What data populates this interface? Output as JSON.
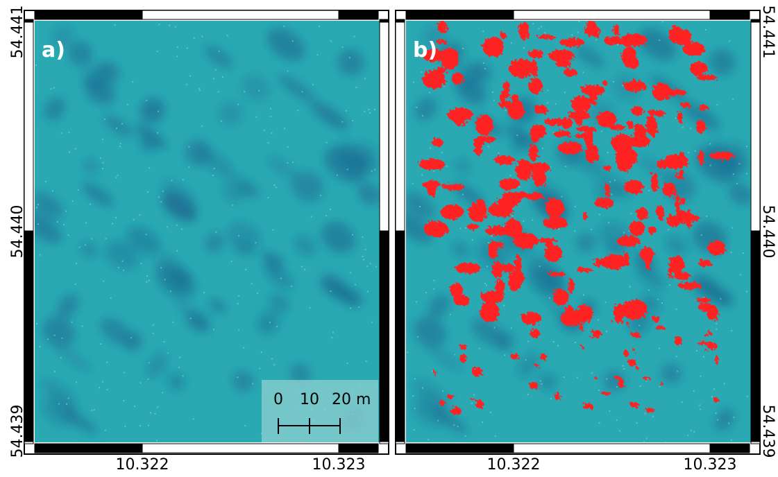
{
  "panels": [
    {
      "label": "a)"
    },
    {
      "label": "b)"
    }
  ],
  "axes": {
    "latitude_ticks": [
      "54.441",
      "54.440",
      "54.439"
    ],
    "longitude_ticks": [
      "10.322",
      "10.323"
    ]
  },
  "scale_bar": {
    "labels": [
      "0",
      "10",
      "20 m"
    ]
  }
}
